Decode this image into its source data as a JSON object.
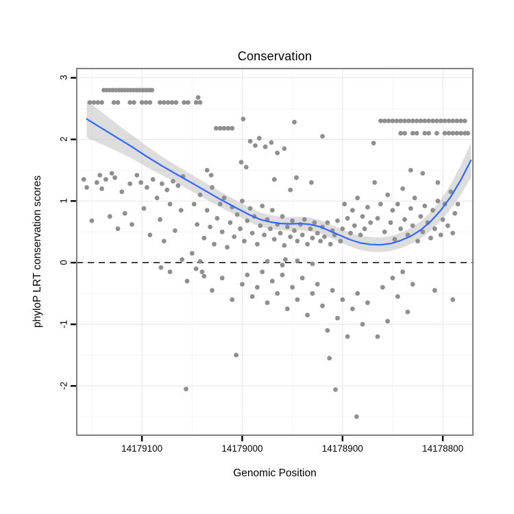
{
  "chart_data": {
    "type": "scatter",
    "title": "Conservation",
    "xlabel": "Genomic Position",
    "ylabel": "phyloP LRT conservation scores",
    "x_axis": {
      "reversed": true,
      "domain": [
        14179165,
        14178770
      ],
      "ticks": [
        14179100,
        14179000,
        14178900,
        14178800
      ],
      "tick_labels": [
        "14179100",
        "14179000",
        "14178900",
        "14178800"
      ],
      "minor": [
        14179150,
        14179050,
        14178950,
        14178850
      ]
    },
    "y_axis": {
      "domain": [
        -2.8,
        3.15
      ],
      "ticks": [
        -2,
        -1,
        0,
        1,
        2,
        3
      ],
      "tick_labels": [
        "-2",
        "-1",
        "0",
        "1",
        "2",
        "3"
      ],
      "minor": [
        2.5,
        1.5,
        0.5,
        -0.5,
        -1.5,
        -2.5
      ]
    },
    "reference_line": {
      "y": 0,
      "style": "dashed",
      "color": "#000000"
    },
    "style": {
      "point_color": "#8F8F8F",
      "point_radius": 3.4,
      "grid_major": "#E8E8E8",
      "grid_minor": "#F4F4F4",
      "panel_border": "#7F7F7F",
      "tick_color": "#000000",
      "background": "#FFFFFF"
    },
    "smoother": {
      "type": "loess",
      "color": "#3366FF",
      "band_color": "#BCBCBC",
      "band_opacity": 0.5,
      "points": [
        [
          14179155,
          2.33,
          0.3
        ],
        [
          14179140,
          2.18,
          0.26
        ],
        [
          14179125,
          2.03,
          0.22
        ],
        [
          14179110,
          1.88,
          0.19
        ],
        [
          14179095,
          1.72,
          0.17
        ],
        [
          14179080,
          1.57,
          0.15
        ],
        [
          14179065,
          1.43,
          0.14
        ],
        [
          14179050,
          1.29,
          0.135
        ],
        [
          14179035,
          1.15,
          0.13
        ],
        [
          14179020,
          1.01,
          0.125
        ],
        [
          14179005,
          0.88,
          0.12
        ],
        [
          14178992,
          0.77,
          0.12
        ],
        [
          14178982,
          0.7,
          0.115
        ],
        [
          14178972,
          0.66,
          0.11
        ],
        [
          14178962,
          0.635,
          0.11
        ],
        [
          14178952,
          0.63,
          0.11
        ],
        [
          14178942,
          0.635,
          0.11
        ],
        [
          14178932,
          0.62,
          0.11
        ],
        [
          14178922,
          0.58,
          0.11
        ],
        [
          14178912,
          0.51,
          0.11
        ],
        [
          14178902,
          0.44,
          0.11
        ],
        [
          14178892,
          0.37,
          0.11
        ],
        [
          14178882,
          0.32,
          0.115
        ],
        [
          14178872,
          0.295,
          0.12
        ],
        [
          14178862,
          0.29,
          0.12
        ],
        [
          14178852,
          0.31,
          0.12
        ],
        [
          14178842,
          0.36,
          0.125
        ],
        [
          14178832,
          0.43,
          0.13
        ],
        [
          14178822,
          0.53,
          0.14
        ],
        [
          14178812,
          0.67,
          0.15
        ],
        [
          14178802,
          0.85,
          0.17
        ],
        [
          14178792,
          1.07,
          0.2
        ],
        [
          14178782,
          1.34,
          0.24
        ],
        [
          14178772,
          1.66,
          0.28
        ]
      ]
    },
    "points": [
      [
        14179138,
        2.8
      ],
      [
        14179135,
        2.8
      ],
      [
        14179132,
        2.8
      ],
      [
        14179129,
        2.8
      ],
      [
        14179126,
        2.8
      ],
      [
        14179123,
        2.8
      ],
      [
        14179120,
        2.8
      ],
      [
        14179117,
        2.8
      ],
      [
        14179114,
        2.8
      ],
      [
        14179111,
        2.8
      ],
      [
        14179108,
        2.8
      ],
      [
        14179105,
        2.8
      ],
      [
        14179102,
        2.8
      ],
      [
        14179099,
        2.8
      ],
      [
        14179096,
        2.8
      ],
      [
        14179093,
        2.8
      ],
      [
        14179090,
        2.8
      ],
      [
        14179152,
        2.6
      ],
      [
        14179148,
        2.6
      ],
      [
        14179144,
        2.6
      ],
      [
        14179140,
        2.6
      ],
      [
        14179128,
        2.6
      ],
      [
        14179124,
        2.6
      ],
      [
        14179112,
        2.6
      ],
      [
        14179108,
        2.6
      ],
      [
        14179100,
        2.6
      ],
      [
        14179096,
        2.6
      ],
      [
        14179092,
        2.6
      ],
      [
        14179082,
        2.6
      ],
      [
        14179078,
        2.6
      ],
      [
        14179074,
        2.6
      ],
      [
        14179070,
        2.6
      ],
      [
        14179066,
        2.6
      ],
      [
        14179058,
        2.6
      ],
      [
        14179054,
        2.6
      ],
      [
        14179046,
        2.6
      ],
      [
        14179042,
        2.6
      ],
      [
        14179044,
        2.68
      ],
      [
        14178862,
        2.3
      ],
      [
        14178858,
        2.3
      ],
      [
        14178854,
        2.3
      ],
      [
        14178850,
        2.3
      ],
      [
        14178846,
        2.3
      ],
      [
        14178842,
        2.3
      ],
      [
        14178838,
        2.3
      ],
      [
        14178834,
        2.3
      ],
      [
        14178830,
        2.3
      ],
      [
        14178826,
        2.3
      ],
      [
        14178822,
        2.3
      ],
      [
        14178818,
        2.3
      ],
      [
        14178814,
        2.3
      ],
      [
        14178810,
        2.3
      ],
      [
        14178806,
        2.3
      ],
      [
        14178802,
        2.3
      ],
      [
        14178798,
        2.3
      ],
      [
        14178794,
        2.3
      ],
      [
        14178790,
        2.3
      ],
      [
        14178786,
        2.3
      ],
      [
        14178782,
        2.3
      ],
      [
        14178778,
        2.3
      ],
      [
        14178842,
        2.1
      ],
      [
        14178838,
        2.1
      ],
      [
        14178830,
        2.1
      ],
      [
        14178826,
        2.1
      ],
      [
        14178818,
        2.1
      ],
      [
        14178814,
        2.1
      ],
      [
        14178806,
        2.1
      ],
      [
        14178798,
        2.1
      ],
      [
        14178794,
        2.1
      ],
      [
        14178790,
        2.1
      ],
      [
        14178786,
        2.1
      ],
      [
        14178782,
        2.1
      ],
      [
        14178778,
        2.1
      ],
      [
        14178775,
        2.1
      ],
      [
        14179026,
        2.18
      ],
      [
        14179022,
        2.18
      ],
      [
        14179018,
        2.18
      ],
      [
        14179014,
        2.18
      ],
      [
        14179010,
        2.18
      ],
      [
        14178999,
        2.33
      ],
      [
        14178948,
        2.28
      ],
      [
        14178992,
        1.97
      ],
      [
        14178987,
        1.9
      ],
      [
        14178983,
        2.02
      ],
      [
        14178977,
        1.88
      ],
      [
        14178971,
        1.95
      ],
      [
        14178965,
        1.78
      ],
      [
        14178958,
        1.85
      ],
      [
        14179001,
        1.63
      ],
      [
        14178996,
        1.55
      ],
      [
        14178920,
        2.05
      ],
      [
        14178869,
        1.94
      ],
      [
        14179158,
        1.35
      ],
      [
        14179155,
        1.22
      ],
      [
        14179150,
        0.68
      ],
      [
        14179145,
        1.3
      ],
      [
        14179142,
        1.42
      ],
      [
        14179140,
        1.2
      ],
      [
        14179136,
        1.35
      ],
      [
        14179132,
        0.75
      ],
      [
        14179130,
        1.45
      ],
      [
        14179127,
        1.38
      ],
      [
        14179124,
        0.55
      ],
      [
        14179120,
        1.15
      ],
      [
        14179117,
        0.8
      ],
      [
        14179112,
        1.28
      ],
      [
        14179110,
        0.62
      ],
      [
        14179105,
        1.42
      ],
      [
        14179101,
        1.3
      ],
      [
        14179098,
        0.88
      ],
      [
        14179095,
        1.22
      ],
      [
        14179092,
        0.45
      ],
      [
        14179089,
        1.35
      ],
      [
        14179085,
        1.05
      ],
      [
        14179082,
        0.7
      ],
      [
        14179080,
        1.28
      ],
      [
        14179078,
        0.35
      ],
      [
        14179075,
        1.18
      ],
      [
        14179072,
        0.95
      ],
      [
        14179069,
        1.32
      ],
      [
        14179067,
        0.52
      ],
      [
        14179064,
        1.25
      ],
      [
        14179061,
        0.85
      ],
      [
        14179059,
        1.4
      ],
      [
        14179081,
        -0.08
      ],
      [
        14179072,
        -0.15
      ],
      [
        14179060,
        0.05
      ],
      [
        14179055,
        -0.3
      ],
      [
        14179050,
        0.15
      ],
      [
        14179046,
        -0.1
      ],
      [
        14179042,
        0.02
      ],
      [
        14179038,
        -0.22
      ],
      [
        14179048,
        0.95
      ],
      [
        14179045,
        0.62
      ],
      [
        14179042,
        1.1
      ],
      [
        14179038,
        0.4
      ],
      [
        14179035,
        0.85
      ],
      [
        14179032,
        0.58
      ],
      [
        14179030,
        1.22
      ],
      [
        14179028,
        0.3
      ],
      [
        14179025,
        0.72
      ],
      [
        14179022,
        0.95
      ],
      [
        14179020,
        0.5
      ],
      [
        14179018,
        1.05
      ],
      [
        14179015,
        0.25
      ],
      [
        14179012,
        0.65
      ],
      [
        14179010,
        0.9
      ],
      [
        14179008,
        0.42
      ],
      [
        14179005,
        0.78
      ],
      [
        14179002,
        0.55
      ],
      [
        14179000,
        1.0
      ],
      [
        14178998,
        0.35
      ],
      [
        14178995,
        0.68
      ],
      [
        14178992,
        0.88
      ],
      [
        14178990,
        0.48
      ],
      [
        14178988,
        0.75
      ],
      [
        14178985,
        0.3
      ],
      [
        14178982,
        0.6
      ],
      [
        14178980,
        0.92
      ],
      [
        14178978,
        0.45
      ],
      [
        14178975,
        0.7
      ],
      [
        14178972,
        0.55
      ],
      [
        14178970,
        0.85
      ],
      [
        14178968,
        0.38
      ],
      [
        14178965,
        0.62
      ],
      [
        14178962,
        0.48
      ],
      [
        14178960,
        0.75
      ],
      [
        14178958,
        0.28
      ],
      [
        14178955,
        0.58
      ],
      [
        14178952,
        0.42
      ],
      [
        14178950,
        0.68
      ],
      [
        14178948,
        0.52
      ],
      [
        14178945,
        0.35
      ],
      [
        14178942,
        0.62
      ],
      [
        14178940,
        0.45
      ],
      [
        14178938,
        0.7
      ],
      [
        14178935,
        0.3
      ],
      [
        14178932,
        0.55
      ],
      [
        14178930,
        0.4
      ],
      [
        14178928,
        0.65
      ],
      [
        14178925,
        0.48
      ],
      [
        14178922,
        0.35
      ],
      [
        14178920,
        0.58
      ],
      [
        14178918,
        0.42
      ],
      [
        14178915,
        0.65
      ],
      [
        14178912,
        0.3
      ],
      [
        14178910,
        0.52
      ],
      [
        14178908,
        0.45
      ],
      [
        14178905,
        0.68
      ],
      [
        14178902,
        0.35
      ],
      [
        14178900,
        0.55
      ],
      [
        14178898,
        0.95
      ],
      [
        14178895,
        0.72
      ],
      [
        14178892,
        0.48
      ],
      [
        14178890,
        0.85
      ],
      [
        14178888,
        0.6
      ],
      [
        14178885,
        1.05
      ],
      [
        14178882,
        0.45
      ],
      [
        14178880,
        0.75
      ],
      [
        14178878,
        0.55
      ],
      [
        14178875,
        0.9
      ],
      [
        14178872,
        0.65
      ],
      [
        14178968,
        1.35
      ],
      [
        14178946,
        1.38
      ],
      [
        14178952,
        1.18
      ],
      [
        14178931,
        1.3
      ],
      [
        14179035,
        1.5
      ],
      [
        14179031,
        1.42
      ],
      [
        14178975,
        0.02
      ],
      [
        14178960,
        -0.04
      ],
      [
        14178945,
        0.03
      ],
      [
        14178930,
        -0.02
      ],
      [
        14178957,
        0.05
      ],
      [
        14179040,
        -0.15
      ],
      [
        14179030,
        -0.45
      ],
      [
        14179020,
        -0.25
      ],
      [
        14179010,
        -0.6
      ],
      [
        14179000,
        -0.35
      ],
      [
        14178995,
        -0.2
      ],
      [
        14178990,
        -0.55
      ],
      [
        14178985,
        -0.4
      ],
      [
        14178980,
        -0.15
      ],
      [
        14178975,
        -0.65
      ],
      [
        14178970,
        -0.3
      ],
      [
        14178965,
        -0.5
      ],
      [
        14178960,
        -0.2
      ],
      [
        14178955,
        -0.75
      ],
      [
        14178950,
        -0.4
      ],
      [
        14178945,
        -0.6
      ],
      [
        14178940,
        -0.25
      ],
      [
        14178935,
        -0.85
      ],
      [
        14178930,
        -0.5
      ],
      [
        14178925,
        -0.35
      ],
      [
        14178920,
        -0.7
      ],
      [
        14178915,
        -1.1
      ],
      [
        14178910,
        -0.45
      ],
      [
        14178905,
        -0.9
      ],
      [
        14178900,
        -0.6
      ],
      [
        14178895,
        -1.2
      ],
      [
        14178890,
        -0.75
      ],
      [
        14178885,
        -0.5
      ],
      [
        14178880,
        -1.0
      ],
      [
        14178875,
        -0.65
      ],
      [
        14178868,
        1.3
      ],
      [
        14178865,
        0.72
      ],
      [
        14178862,
        0.95
      ],
      [
        14178858,
        0.5
      ],
      [
        14178855,
        1.1
      ],
      [
        14178852,
        0.65
      ],
      [
        14178850,
        0.85
      ],
      [
        14178848,
        0.38
      ],
      [
        14178845,
        0.95
      ],
      [
        14178842,
        0.55
      ],
      [
        14178840,
        1.2
      ],
      [
        14178838,
        0.7
      ],
      [
        14178835,
        0.45
      ],
      [
        14178832,
        1.5
      ],
      [
        14178832,
        0.88
      ],
      [
        14178830,
        0.6
      ],
      [
        14178828,
        1.05
      ],
      [
        14178825,
        0.35
      ],
      [
        14178822,
        0.75
      ],
      [
        14178820,
        1.45
      ],
      [
        14178820,
        0.5
      ],
      [
        14178818,
        0.92
      ],
      [
        14178815,
        0.65
      ],
      [
        14178812,
        0.4
      ],
      [
        14178810,
        0.85
      ],
      [
        14178808,
        0.55
      ],
      [
        14178805,
        1.3
      ],
      [
        14178805,
        1.0
      ],
      [
        14178802,
        0.45
      ],
      [
        14178800,
        0.7
      ],
      [
        14178798,
        0.95
      ],
      [
        14178795,
        0.6
      ],
      [
        14178792,
        1.15
      ],
      [
        14178790,
        0.48
      ],
      [
        14178788,
        0.8
      ],
      [
        14178785,
        0.95
      ],
      [
        14178865,
        -1.2
      ],
      [
        14178860,
        -0.4
      ],
      [
        14178855,
        -0.95
      ],
      [
        14178850,
        -0.25
      ],
      [
        14178845,
        -0.55
      ],
      [
        14178840,
        -0.15
      ],
      [
        14178835,
        -0.8
      ],
      [
        14178830,
        -0.35
      ],
      [
        14178808,
        -0.45
      ],
      [
        14178790,
        -0.6
      ],
      [
        14179056,
        -2.05
      ],
      [
        14179006,
        -1.5
      ],
      [
        14178907,
        -2.06
      ],
      [
        14178886,
        -2.5
      ],
      [
        14178913,
        -1.55
      ]
    ]
  }
}
